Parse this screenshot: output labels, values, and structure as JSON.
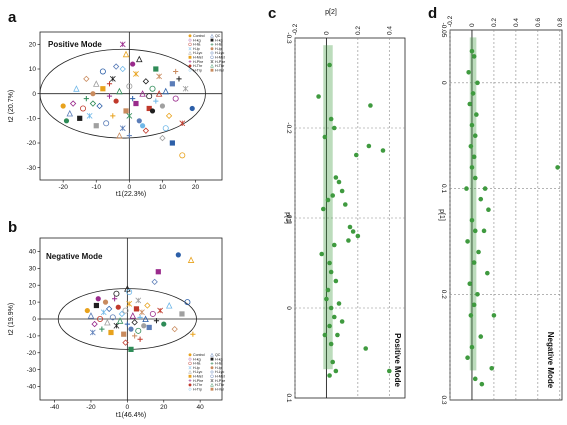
{
  "figure": {
    "panel_labels": [
      "a",
      "b",
      "c",
      "d"
    ]
  },
  "colors": {
    "groups": [
      "#e8a21c",
      "#5b7db8",
      "#9a2b8c",
      "#1f1f1f",
      "#c0392b",
      "#2e8b57",
      "#6fb7e8",
      "#c98b5e",
      "#a0a0a0",
      "#2c5fa8"
    ],
    "loading": "#3f9a3f"
  },
  "chart_data": [
    {
      "id": "a",
      "type": "scatter",
      "title": "Positive Mode",
      "xlabel": "t1(22.3%)",
      "ylabel": "t2 (20.7%)",
      "xlim": [
        -27,
        28
      ],
      "ylim": [
        -35,
        25
      ],
      "xticks": [
        -20,
        -10,
        0,
        10,
        20
      ],
      "yticks": [
        -30,
        -20,
        -10,
        0,
        10,
        20
      ],
      "legend": {
        "placement": "top-right",
        "entries": [
          "Control",
          "QC",
          "H-kg",
          "H-kg",
          "H-lla",
          "H-lla",
          "H-lp",
          "H-lp",
          "H-Lyc",
          "H-Lyc",
          "H-Met",
          "H-Met",
          "H-Phe",
          "H-Phe",
          "H-Thr",
          "H-Thr",
          "H-Trp",
          "H-Val"
        ]
      },
      "ellipse": {
        "cx": -2,
        "cy": 0,
        "rx": 25,
        "ry": 18
      },
      "points": [
        [
          -20,
          -5
        ],
        [
          -18,
          -8
        ],
        [
          -17,
          -4
        ],
        [
          -15,
          -10
        ],
        [
          -14,
          -6
        ],
        [
          -13,
          -2
        ],
        [
          -12,
          -9
        ],
        [
          -11,
          0
        ],
        [
          -10,
          4
        ],
        [
          -9,
          -5
        ],
        [
          -8,
          2
        ],
        [
          -7,
          -12
        ],
        [
          -6,
          -1
        ],
        [
          -5,
          6
        ],
        [
          -4,
          -3
        ],
        [
          -3,
          1
        ],
        [
          -2,
          10
        ],
        [
          -1,
          -7
        ],
        [
          0,
          3
        ],
        [
          1,
          -2
        ],
        [
          2,
          8
        ],
        [
          3,
          -11
        ],
        [
          4,
          0
        ],
        [
          5,
          5
        ],
        [
          6,
          -6
        ],
        [
          7,
          2
        ],
        [
          8,
          -3
        ],
        [
          9,
          7
        ],
        [
          10,
          -5
        ],
        [
          11,
          1
        ],
        [
          12,
          -9
        ],
        [
          13,
          4
        ],
        [
          14,
          -2
        ],
        [
          15,
          6
        ],
        [
          16,
          -12
        ],
        [
          -19,
          -11
        ],
        [
          -16,
          2
        ],
        [
          -13,
          6
        ],
        [
          -10,
          -13
        ],
        [
          -8,
          9
        ],
        [
          -5,
          -9
        ],
        [
          -2,
          -14
        ],
        [
          1,
          12
        ],
        [
          3,
          14
        ],
        [
          5,
          -15
        ],
        [
          8,
          10
        ],
        [
          11,
          -14
        ],
        [
          14,
          9
        ],
        [
          17,
          2
        ],
        [
          19,
          -6
        ],
        [
          -1,
          16
        ],
        [
          -4,
          11
        ],
        [
          2,
          -4
        ],
        [
          6,
          -1
        ],
        [
          -6,
          4
        ],
        [
          0,
          -9
        ],
        [
          4,
          -13
        ],
        [
          -3,
          -17
        ],
        [
          10,
          -18
        ],
        [
          13,
          -20
        ],
        [
          16,
          -25
        ],
        [
          0,
          -17
        ],
        [
          -2,
          20
        ],
        [
          7,
          -7
        ],
        [
          9,
          0
        ],
        [
          -11,
          -4
        ]
      ]
    },
    {
      "id": "b",
      "type": "scatter",
      "title": "Negative Mode",
      "xlabel": "t1(46.4%)",
      "ylabel": "t2 (19.9%)",
      "xlim": [
        -48,
        52
      ],
      "ylim": [
        -48,
        48
      ],
      "xticks": [
        -40,
        -20,
        0,
        20,
        40
      ],
      "yticks": [
        -40,
        -30,
        -20,
        -10,
        0,
        10,
        20,
        30,
        40
      ],
      "legend": {
        "placement": "bottom-right",
        "entries": [
          "Control",
          "QC",
          "H-kg",
          "H-kg",
          "H-lla",
          "H-lla",
          "H-lp",
          "H-lp",
          "H-Lyc",
          "H-Lyc",
          "H-Met",
          "H-Met",
          "H-Phe",
          "H-Phe",
          "H-Thr",
          "H-Thr",
          "H-Trp",
          "H-Val"
        ]
      },
      "ellipse": {
        "cx": 0,
        "cy": 0,
        "rx": 38,
        "ry": 18
      },
      "points": [
        [
          -22,
          5
        ],
        [
          -20,
          2
        ],
        [
          -18,
          -3
        ],
        [
          -17,
          8
        ],
        [
          -15,
          0
        ],
        [
          -14,
          -6
        ],
        [
          -13,
          4
        ],
        [
          -12,
          10
        ],
        [
          -11,
          -2
        ],
        [
          -10,
          6
        ],
        [
          -9,
          -8
        ],
        [
          -8,
          1
        ],
        [
          -7,
          12
        ],
        [
          -6,
          -4
        ],
        [
          -5,
          7
        ],
        [
          -4,
          -1
        ],
        [
          -3,
          3
        ],
        [
          -2,
          -9
        ],
        [
          -1,
          5
        ],
        [
          0,
          -3
        ],
        [
          1,
          9
        ],
        [
          2,
          -6
        ],
        [
          3,
          2
        ],
        [
          4,
          -2
        ],
        [
          5,
          6
        ],
        [
          6,
          -7
        ],
        [
          7,
          1
        ],
        [
          8,
          4
        ],
        [
          9,
          -4
        ],
        [
          10,
          0
        ],
        [
          11,
          8
        ],
        [
          12,
          -5
        ],
        [
          14,
          3
        ],
        [
          16,
          -1
        ],
        [
          18,
          5
        ],
        [
          20,
          -3
        ],
        [
          23,
          8
        ],
        [
          26,
          -6
        ],
        [
          30,
          3
        ],
        [
          33,
          10
        ],
        [
          36,
          -9
        ],
        [
          -19,
          -8
        ],
        [
          -16,
          12
        ],
        [
          0,
          18
        ],
        [
          -1,
          -14
        ],
        [
          2,
          -18
        ],
        [
          1,
          16
        ],
        [
          4,
          -10
        ],
        [
          6,
          11
        ],
        [
          28,
          38
        ],
        [
          35,
          35
        ],
        [
          15,
          22
        ],
        [
          17,
          28
        ],
        [
          -6,
          15
        ],
        [
          7,
          -12
        ]
      ]
    },
    {
      "id": "c",
      "type": "scatter",
      "title": "Positive Mode",
      "xlabel": "p[2]",
      "ylabel": "p[1]",
      "xlim": [
        -0.2,
        0.5
      ],
      "ylim": [
        -0.3,
        0.1
      ],
      "xticks": [
        -0.2,
        0,
        0.2,
        0.4
      ],
      "yticks": [
        -0.3,
        -0.2,
        -0.1,
        0,
        0.1
      ],
      "points": [
        [
          0.02,
          -0.27
        ],
        [
          -0.05,
          -0.235
        ],
        [
          0.28,
          -0.225
        ],
        [
          0.36,
          -0.175
        ],
        [
          0.03,
          -0.21
        ],
        [
          0.05,
          -0.2
        ],
        [
          -0.01,
          -0.19
        ],
        [
          0.27,
          -0.18
        ],
        [
          0.19,
          -0.17
        ],
        [
          0.06,
          -0.145
        ],
        [
          0.08,
          -0.14
        ],
        [
          0.1,
          -0.13
        ],
        [
          0.04,
          -0.125
        ],
        [
          0.01,
          -0.12
        ],
        [
          0.12,
          -0.115
        ],
        [
          -0.02,
          -0.11
        ],
        [
          0.15,
          -0.09
        ],
        [
          0.17,
          -0.085
        ],
        [
          0.2,
          -0.08
        ],
        [
          0.14,
          -0.075
        ],
        [
          0.05,
          -0.07
        ],
        [
          -0.03,
          -0.06
        ],
        [
          0.02,
          -0.05
        ],
        [
          0.03,
          -0.04
        ],
        [
          0.06,
          -0.03
        ],
        [
          0.01,
          -0.02
        ],
        [
          0.0,
          -0.01
        ],
        [
          0.03,
          0.0
        ],
        [
          0.05,
          0.01
        ],
        [
          0.02,
          0.02
        ],
        [
          0.07,
          0.03
        ],
        [
          0.03,
          0.04
        ],
        [
          0.04,
          0.06
        ],
        [
          0.06,
          0.07
        ],
        [
          0.02,
          0.075
        ],
        [
          0.4,
          0.07
        ],
        [
          0.25,
          0.045
        ],
        [
          -0.01,
          0.03
        ],
        [
          0.08,
          -0.005
        ],
        [
          0.1,
          0.015
        ]
      ]
    },
    {
      "id": "d",
      "type": "scatter",
      "title": "Negative Mode",
      "xlabel": "p[2]",
      "ylabel": "p[1]",
      "xlim": [
        -0.2,
        0.82
      ],
      "ylim": [
        -0.05,
        0.3
      ],
      "xticks": [
        -0.2,
        0,
        0.2,
        0.4,
        0.6,
        0.8
      ],
      "yticks": [
        -0.05,
        0,
        0.1,
        0.2,
        0.3
      ],
      "points": [
        [
          0.0,
          -0.03
        ],
        [
          0.02,
          -0.025
        ],
        [
          -0.03,
          -0.01
        ],
        [
          0.05,
          0.0
        ],
        [
          0.01,
          0.01
        ],
        [
          -0.02,
          0.02
        ],
        [
          0.04,
          0.03
        ],
        [
          0.0,
          0.04
        ],
        [
          0.03,
          0.05
        ],
        [
          -0.01,
          0.06
        ],
        [
          0.02,
          0.07
        ],
        [
          0.0,
          0.08
        ],
        [
          0.03,
          0.09
        ],
        [
          0.78,
          0.08
        ],
        [
          0.12,
          0.1
        ],
        [
          -0.05,
          0.1
        ],
        [
          0.08,
          0.11
        ],
        [
          0.15,
          0.12
        ],
        [
          0.0,
          0.13
        ],
        [
          0.03,
          0.14
        ],
        [
          0.11,
          0.14
        ],
        [
          -0.04,
          0.15
        ],
        [
          0.06,
          0.16
        ],
        [
          0.02,
          0.17
        ],
        [
          0.14,
          0.18
        ],
        [
          -0.02,
          0.19
        ],
        [
          0.05,
          0.2
        ],
        [
          0.02,
          0.21
        ],
        [
          -0.01,
          0.22
        ],
        [
          0.08,
          0.24
        ],
        [
          0.0,
          0.25
        ],
        [
          -0.04,
          0.26
        ],
        [
          0.03,
          0.28
        ],
        [
          0.18,
          0.27
        ],
        [
          0.09,
          0.285
        ],
        [
          0.2,
          0.22
        ]
      ]
    }
  ]
}
